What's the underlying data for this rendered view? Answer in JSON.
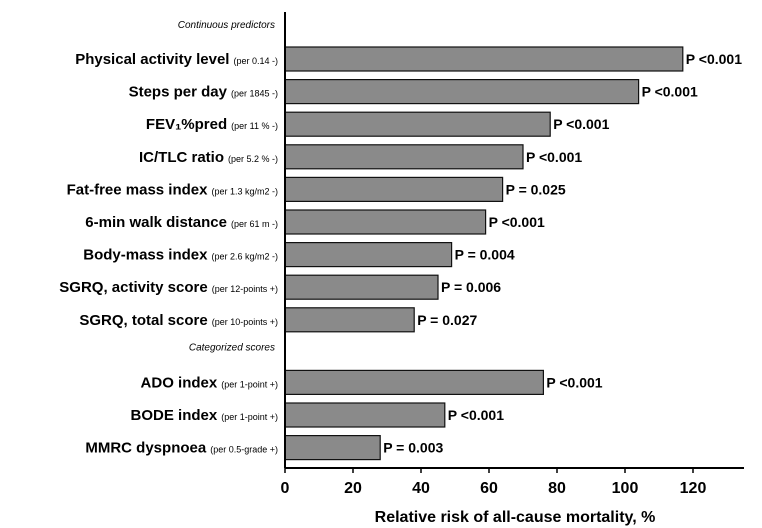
{
  "chart_data": {
    "type": "bar",
    "orientation": "horizontal",
    "xlabel": "Relative risk of all-cause mortality, %",
    "xlim": [
      0,
      135
    ],
    "xticks": [
      0,
      20,
      40,
      60,
      80,
      100,
      120
    ],
    "sections": [
      {
        "label": "Continuous predictors"
      },
      {
        "label": "Categorized scores"
      }
    ],
    "bars": [
      {
        "label": "Physical activity level",
        "unit": "(per 0.14 -)",
        "value": 117,
        "p": "P <0.001",
        "section": 0
      },
      {
        "label": "Steps per day",
        "unit": "(per 1845 -)",
        "value": 104,
        "p": "P <0.001",
        "section": 0
      },
      {
        "label": "FEV₁%pred",
        "unit": "(per 11 % -)",
        "value": 78,
        "p": "P <0.001",
        "section": 0
      },
      {
        "label": "IC/TLC ratio",
        "unit": "(per 5.2 % -)",
        "value": 70,
        "p": "P <0.001",
        "section": 0
      },
      {
        "label": "Fat-free mass index",
        "unit": "(per 1.3 kg/m2 -)",
        "value": 64,
        "p": "P = 0.025",
        "section": 0
      },
      {
        "label": "6-min walk distance",
        "unit": "(per 61 m -)",
        "value": 59,
        "p": "P <0.001",
        "section": 0
      },
      {
        "label": "Body-mass index",
        "unit": "(per 2.6 kg/m2 -)",
        "value": 49,
        "p": "P = 0.004",
        "section": 0
      },
      {
        "label": "SGRQ, activity score",
        "unit": "(per 12-points +)",
        "value": 45,
        "p": "P = 0.006",
        "section": 0
      },
      {
        "label": "SGRQ, total score",
        "unit": "(per 10-points +)",
        "value": 38,
        "p": "P = 0.027",
        "section": 0
      },
      {
        "label": "ADO index",
        "unit": "(per 1-point +)",
        "value": 76,
        "p": "P <0.001",
        "section": 1
      },
      {
        "label": "BODE index",
        "unit": "(per 1-point +)",
        "value": 47,
        "p": "P <0.001",
        "section": 1
      },
      {
        "label": "MMRC dyspnoea",
        "unit": "(per 0.5-grade +)",
        "value": 28,
        "p": "P = 0.003",
        "section": 1
      }
    ]
  }
}
